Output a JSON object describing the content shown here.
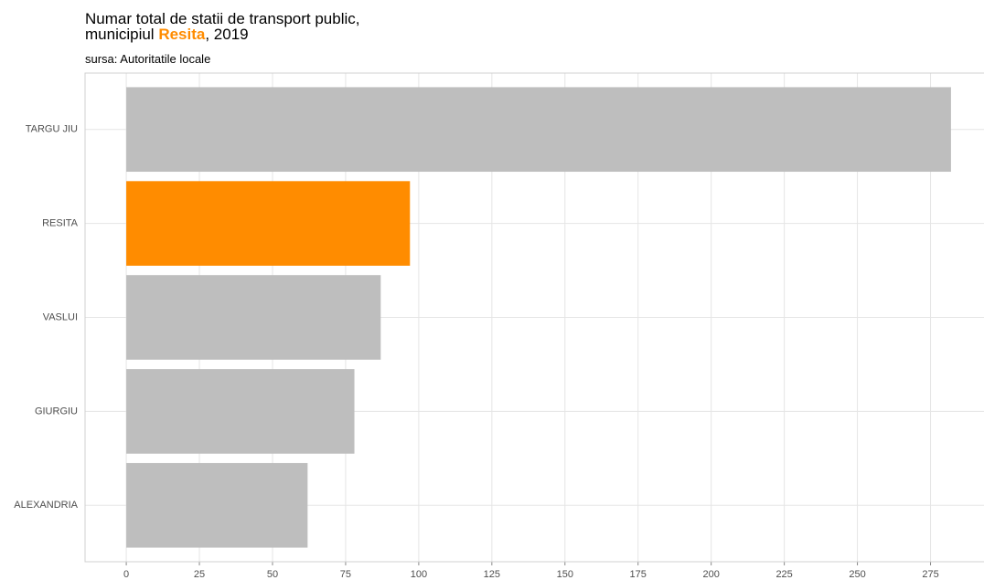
{
  "chart_data": {
    "type": "barh",
    "title": [
      "Numar total de statii de transport public,",
      "municipiul",
      "Resita",
      ", 2019"
    ],
    "subtitle": "sursa: Autoritatile locale",
    "categories": [
      "TARGU JIU",
      "RESITA",
      "VASLUI",
      "GIURGIU",
      "ALEXANDRIA"
    ],
    "values": [
      282,
      97,
      87,
      78,
      62
    ],
    "colors": [
      "#bebebe",
      "#ff8c00",
      "#bebebe",
      "#bebebe",
      "#bebebe"
    ],
    "highlight_color": "#ff8c00",
    "xlim": [
      -14.1,
      296.1
    ],
    "xticks": [
      0,
      25,
      50,
      75,
      100,
      125,
      150,
      175,
      200,
      225,
      250,
      275
    ],
    "grid": true
  }
}
